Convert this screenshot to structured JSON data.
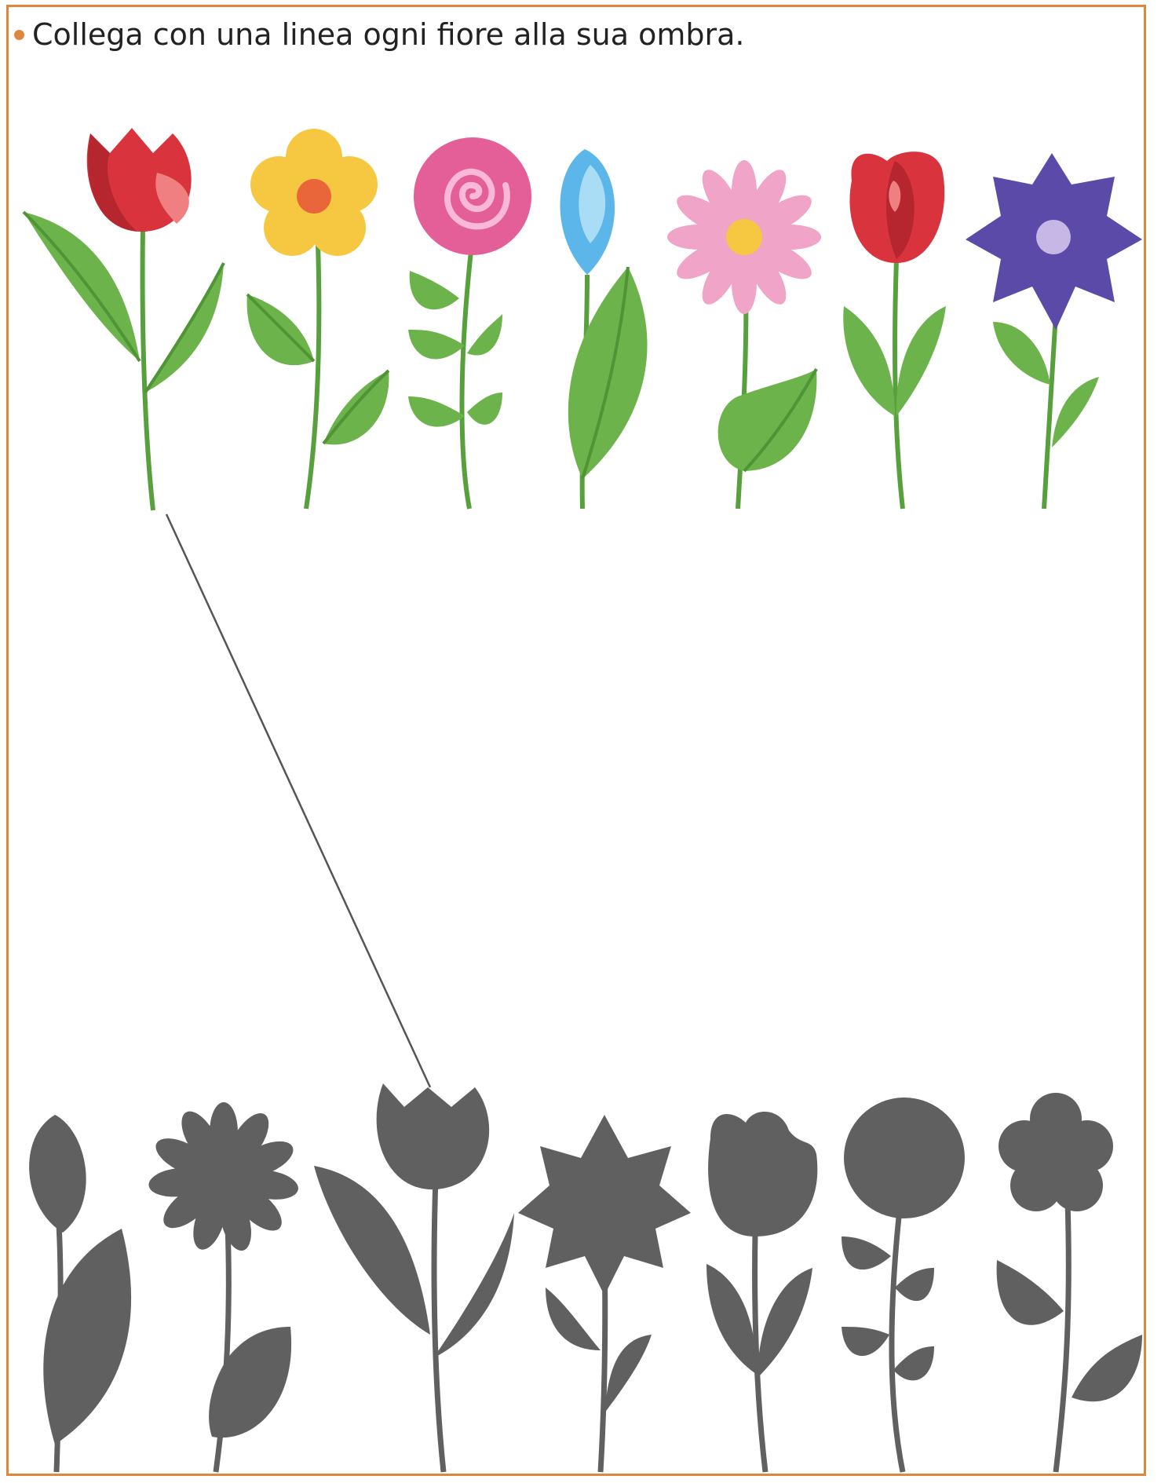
{
  "instruction": {
    "text": "Collega con una linea ogni fiore alla sua ombra.",
    "bullet_color": "#e0873e"
  },
  "flowers": [
    {
      "kind": "tulip",
      "petal_color": "#d9343d"
    },
    {
      "kind": "five-petal",
      "petal_color": "#f6c842",
      "center_color": "#e8663a"
    },
    {
      "kind": "spiral",
      "petal_color": "#e45f98"
    },
    {
      "kind": "bud",
      "petal_color": "#5cb6ea"
    },
    {
      "kind": "daisy",
      "petal_color": "#f0a4c8",
      "center_color": "#f6c842"
    },
    {
      "kind": "tulip",
      "petal_color": "#d9343d"
    },
    {
      "kind": "star",
      "petal_color": "#5b4aa8",
      "center_color": "#c7b7e6"
    }
  ],
  "shadows": [
    {
      "kind": "bud"
    },
    {
      "kind": "daisy"
    },
    {
      "kind": "tulip"
    },
    {
      "kind": "star"
    },
    {
      "kind": "tulip"
    },
    {
      "kind": "spiral"
    },
    {
      "kind": "five-petal"
    }
  ],
  "colors": {
    "border": "#e0873e",
    "leaf": "#6db34b",
    "leaf_dark": "#4f9435",
    "stem": "#58a03d",
    "shadow": "#606060",
    "connector": "#555555"
  },
  "connections": [
    {
      "flower": 1,
      "shadow": 3
    }
  ]
}
